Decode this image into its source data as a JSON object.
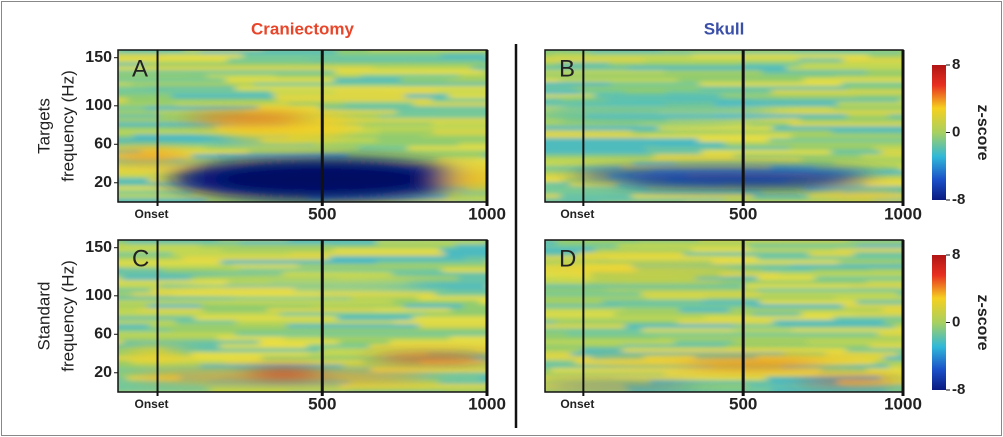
{
  "chart_data": [
    {
      "type": "heatmap",
      "panel": "A",
      "title": "Craniectomy",
      "title_color": "#e8462a",
      "ylabel_lines": [
        "Targets",
        "frequency (Hz)"
      ],
      "xlim": [
        -120,
        1000
      ],
      "xticks": [
        {
          "value": 0,
          "label": "Onset"
        },
        500,
        1000
      ],
      "ylim": [
        0,
        158
      ],
      "yticks": [
        20,
        60,
        100,
        150
      ]
    },
    {
      "type": "heatmap",
      "panel": "B",
      "title": "Skull",
      "title_color": "#3a4fa8",
      "xlim": [
        -120,
        1000
      ],
      "xticks": [
        {
          "value": 0,
          "label": "Onset"
        },
        500,
        1000
      ],
      "ylim": [
        0,
        158
      ],
      "colorbar": {
        "label": "z-score",
        "lim": [
          -8,
          8
        ],
        "ticks": [
          8,
          0,
          -8
        ]
      }
    },
    {
      "type": "heatmap",
      "panel": "C",
      "ylabel_lines": [
        "Standard",
        "frequency (Hz)"
      ],
      "xlim": [
        -120,
        1000
      ],
      "xticks": [
        {
          "value": 0,
          "label": "Onset"
        },
        500,
        1000
      ],
      "ylim": [
        0,
        158
      ],
      "yticks": [
        20,
        60,
        100,
        150
      ]
    },
    {
      "type": "heatmap",
      "panel": "D",
      "xlim": [
        -120,
        1000
      ],
      "xticks": [
        {
          "value": 0,
          "label": "Onset"
        },
        500,
        1000
      ],
      "ylim": [
        0,
        158
      ],
      "colorbar": {
        "label": "z-score",
        "lim": [
          -8,
          8
        ],
        "ticks": [
          8,
          0,
          -8
        ]
      }
    }
  ]
}
